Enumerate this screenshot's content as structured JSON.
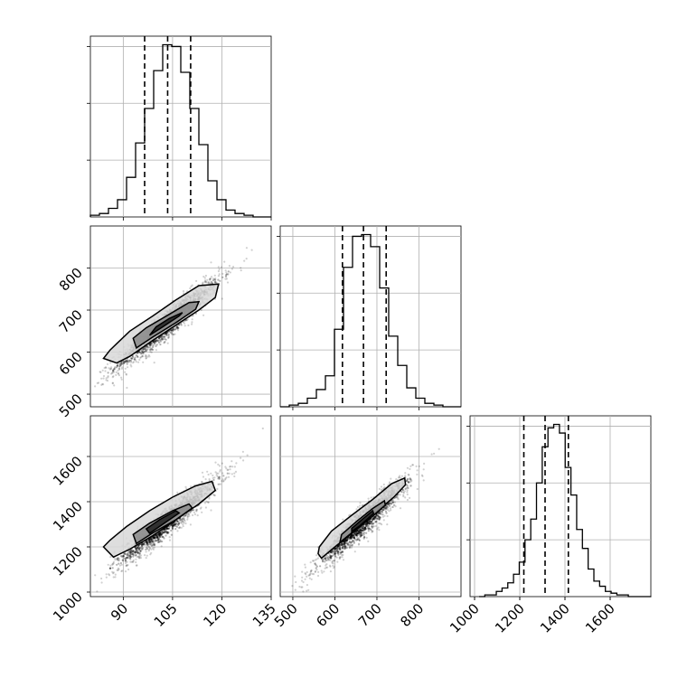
{
  "chart_data": {
    "type": "scatter",
    "params": [
      {
        "range": [
          80,
          135
        ],
        "ticks": [
          90,
          105,
          120,
          135
        ],
        "tick_labels": [
          "90",
          "105",
          "120",
          "135"
        ],
        "quantiles": [
          96.5,
          103.5,
          110.5
        ]
      },
      {
        "range": [
          470,
          900
        ],
        "ticks": [
          500,
          600,
          700,
          800
        ],
        "tick_labels": [
          "500",
          "600",
          "700",
          "800"
        ],
        "quantiles": [
          618,
          668,
          722
        ]
      },
      {
        "range": [
          980,
          1780
        ],
        "ticks": [
          1000,
          1200,
          1400,
          1600
        ],
        "tick_labels": [
          "1000",
          "1200",
          "1400",
          "1600"
        ],
        "quantiles": [
          1218,
          1312,
          1415
        ]
      }
    ],
    "hist1d": [
      {
        "edges": [
          80,
          82.75,
          85.5,
          88.25,
          91,
          93.75,
          96.5,
          99.25,
          102,
          104.75,
          107.5,
          110.25,
          113,
          115.75,
          118.5,
          121.25,
          124,
          126.75,
          129.5,
          132.25,
          135
        ],
        "counts": [
          1,
          2,
          5,
          10,
          23,
          43,
          63,
          85,
          100,
          99,
          84,
          63,
          42,
          21,
          10,
          4,
          2,
          1,
          0,
          0
        ],
        "ymax": 100
      },
      {
        "edges": [
          470,
          491.5,
          513,
          534.5,
          556,
          577.5,
          599,
          620.5,
          642,
          663.5,
          685,
          706.5,
          728,
          749.5,
          771,
          792.5,
          814,
          835.5,
          857,
          878.5,
          900
        ],
        "counts": [
          0,
          1,
          2,
          5,
          10,
          18,
          45,
          81,
          99,
          100,
          93,
          69,
          41,
          24,
          11,
          5,
          2,
          1,
          0,
          0
        ],
        "ymax": 100
      },
      {
        "edges": [
          1020,
          1045.4,
          1070.8,
          1096.2,
          1121.6,
          1147,
          1172.4,
          1197.8,
          1223.2,
          1248.6,
          1274,
          1299.4,
          1324.8,
          1350.2,
          1375.6,
          1401,
          1426.4,
          1451.8,
          1477.2,
          1502.6,
          1528,
          1553.4,
          1578.8,
          1604.2,
          1629.6,
          1655,
          1680.4,
          1705.8,
          1731.2,
          1756.6,
          1782
        ],
        "counts": [
          0,
          1,
          1,
          3,
          5,
          8,
          13,
          20,
          33,
          45,
          66,
          87,
          98,
          100,
          95,
          75,
          59,
          39,
          28,
          16,
          9,
          6,
          3,
          2,
          1,
          1,
          0,
          0,
          0,
          0
        ],
        "ymax": 100
      }
    ],
    "pairs": [
      {
        "x_param": 0,
        "y_param": 1,
        "mean": [
          103.5,
          668
        ],
        "sd": [
          8.0,
          55.0
        ],
        "rho": 0.95,
        "contours": [
          [
            [
              88,
              574
            ],
            [
              92,
              590
            ],
            [
              99,
              628
            ],
            [
              106,
              664
            ],
            [
              113,
              700
            ],
            [
              118,
              730
            ],
            [
              119,
              762
            ],
            [
              113,
              758
            ],
            [
              106,
              724
            ],
            [
              99,
              686
            ],
            [
              92,
              650
            ],
            [
              86,
              605
            ],
            [
              84,
              585
            ],
            [
              88,
              574
            ]
          ],
          [
            [
              94,
              610
            ],
            [
              99,
              636
            ],
            [
              106,
              670
            ],
            [
              112,
              702
            ],
            [
              113,
              720
            ],
            [
              110,
              718
            ],
            [
              104,
              690
            ],
            [
              97,
              658
            ],
            [
              93,
              633
            ],
            [
              94,
              610
            ]
          ],
          [
            [
              98,
              640
            ],
            [
              102,
              660
            ],
            [
              107,
              686
            ],
            [
              108,
              694
            ],
            [
              104,
              680
            ],
            [
              100,
              660
            ],
            [
              98,
              640
            ]
          ]
        ]
      },
      {
        "x_param": 0,
        "y_param": 2,
        "mean": [
          103.5,
          1312
        ],
        "sd": [
          8.0,
          100.0
        ],
        "rho": 0.95,
        "contours": [
          [
            [
              87,
              1155
            ],
            [
              92,
              1190
            ],
            [
              99,
              1250
            ],
            [
              106,
              1320
            ],
            [
              113,
              1390
            ],
            [
              118,
              1450
            ],
            [
              117,
              1490
            ],
            [
              112,
              1470
            ],
            [
              105,
              1420
            ],
            [
              98,
              1360
            ],
            [
              91,
              1290
            ],
            [
              86,
              1230
            ],
            [
              84,
              1200
            ],
            [
              87,
              1155
            ]
          ],
          [
            [
              94,
              1215
            ],
            [
              99,
              1262
            ],
            [
              106,
              1320
            ],
            [
              111,
              1372
            ],
            [
              110,
              1390
            ],
            [
              105,
              1360
            ],
            [
              98,
              1305
            ],
            [
              93,
              1255
            ],
            [
              94,
              1215
            ]
          ],
          [
            [
              98,
              1260
            ],
            [
              102,
              1300
            ],
            [
              107,
              1350
            ],
            [
              106,
              1360
            ],
            [
              101,
              1320
            ],
            [
              97,
              1280
            ],
            [
              98,
              1260
            ]
          ]
        ]
      },
      {
        "x_param": 1,
        "y_param": 2,
        "mean": [
          668,
          1312
        ],
        "sd": [
          55.0,
          100.0
        ],
        "rho": 0.95,
        "contours": [
          [
            [
              568,
              1150
            ],
            [
              600,
              1200
            ],
            [
              640,
              1260
            ],
            [
              690,
              1340
            ],
            [
              740,
              1420
            ],
            [
              768,
              1475
            ],
            [
              766,
              1505
            ],
            [
              735,
              1480
            ],
            [
              690,
              1410
            ],
            [
              640,
              1340
            ],
            [
              592,
              1270
            ],
            [
              563,
              1200
            ],
            [
              560,
              1170
            ],
            [
              568,
              1150
            ]
          ],
          [
            [
              612,
              1220
            ],
            [
              640,
              1262
            ],
            [
              680,
              1320
            ],
            [
              720,
              1385
            ],
            [
              718,
              1404
            ],
            [
              690,
              1370
            ],
            [
              650,
              1310
            ],
            [
              616,
              1255
            ],
            [
              612,
              1220
            ]
          ],
          [
            [
              640,
              1268
            ],
            [
              660,
              1295
            ],
            [
              692,
              1348
            ],
            [
              690,
              1360
            ],
            [
              664,
              1320
            ],
            [
              640,
              1282
            ],
            [
              640,
              1268
            ]
          ]
        ]
      }
    ]
  }
}
